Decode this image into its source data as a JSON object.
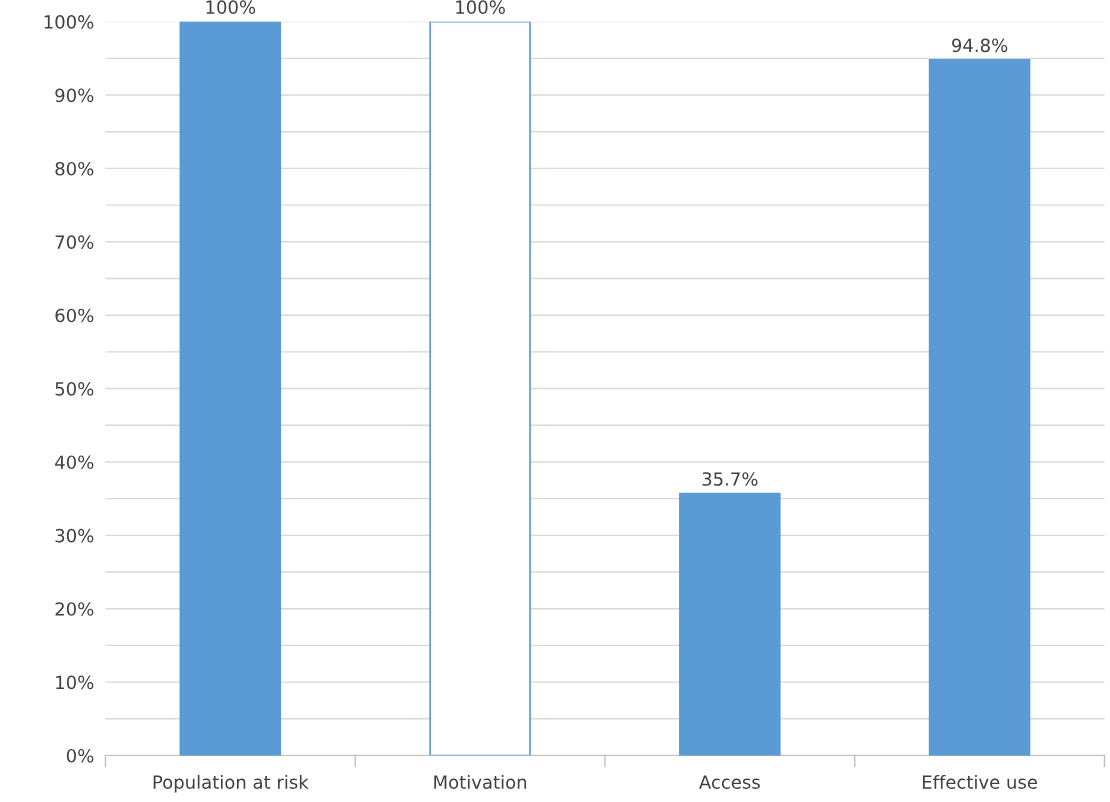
{
  "chart_data": {
    "type": "bar",
    "categories": [
      "Population at risk",
      "Motivation",
      "Access",
      "Effective use"
    ],
    "values": [
      100,
      100,
      35.7,
      94.8
    ],
    "color": "#5b9bd5",
    "colors": [
      "#5b9bd5",
      "#ffffff",
      "#5b9bd5",
      "#5b9bd5"
    ],
    "value_labels": [
      "100%",
      "100%",
      "35.7%",
      "94.8%"
    ],
    "ylim": [
      0,
      100
    ],
    "yticks": [
      {
        "value": 0,
        "label": "0%"
      },
      {
        "value": 5,
        "label": null
      },
      {
        "value": 10,
        "label": "10%"
      },
      {
        "value": 15,
        "label": null
      },
      {
        "value": 20,
        "label": "20%"
      },
      {
        "value": 25,
        "label": null
      },
      {
        "value": 30,
        "label": "30%"
      },
      {
        "value": 35,
        "label": null
      },
      {
        "value": 40,
        "label": "40%"
      },
      {
        "value": 45,
        "label": null
      },
      {
        "value": 50,
        "label": "50%"
      },
      {
        "value": 55,
        "label": null
      },
      {
        "value": 60,
        "label": "60%"
      },
      {
        "value": 65,
        "label": null
      },
      {
        "value": 70,
        "label": "70%"
      },
      {
        "value": 75,
        "label": null
      },
      {
        "value": 80,
        "label": "80%"
      },
      {
        "value": 85,
        "label": null
      },
      {
        "value": 90,
        "label": "90%"
      },
      {
        "value": 95,
        "label": null
      },
      {
        "value": 100,
        "label": "100%"
      }
    ],
    "grid": "y"
  }
}
